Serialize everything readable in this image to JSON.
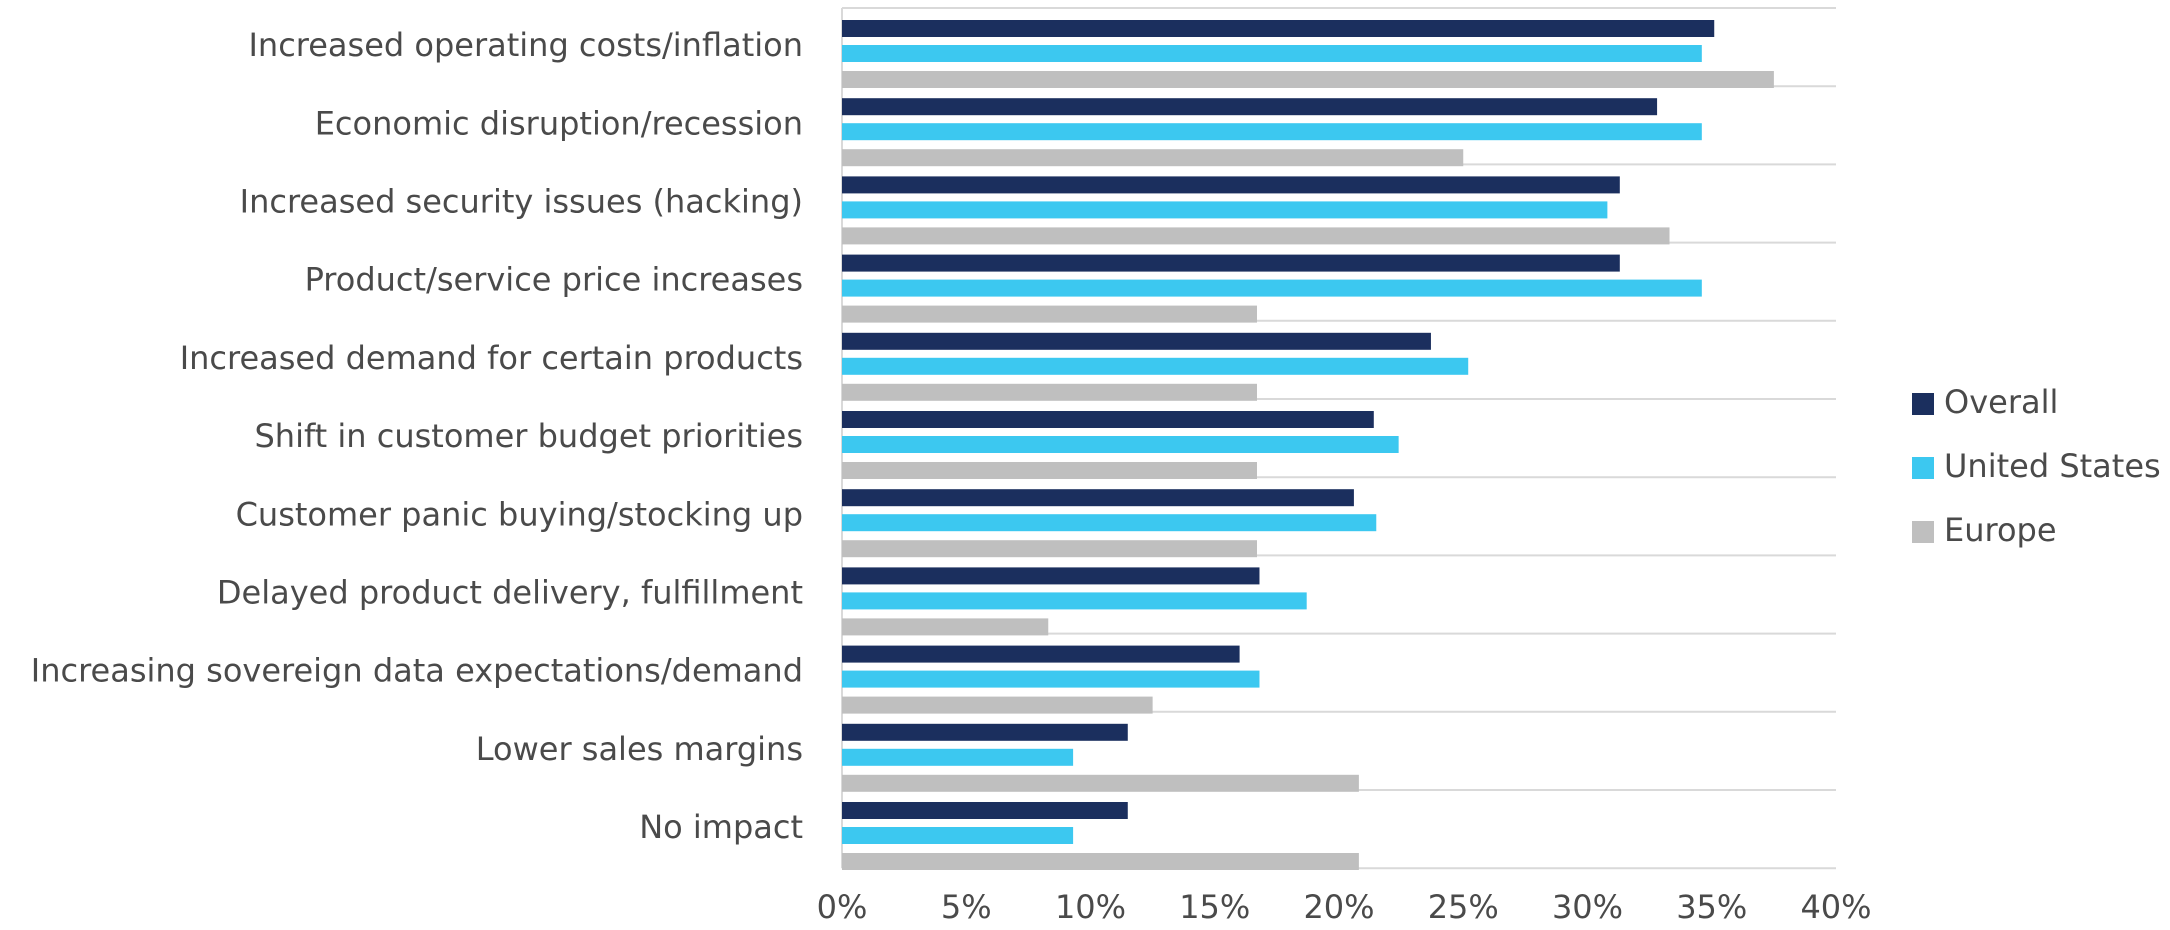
{
  "chart_data": {
    "type": "bar",
    "orientation": "horizontal",
    "categories": [
      "Increased operating costs/inflation",
      "Economic disruption/recession",
      "Increased security issues (hacking)",
      "Product/service price increases",
      "Increased demand for certain products",
      "Shift in customer budget priorities",
      "Customer panic buying/stocking up",
      "Delayed product delivery, fulfillment",
      "Increasing sovereign data expectations/demand",
      "Lower sales margins",
      "No impact"
    ],
    "series": [
      {
        "name": "Overall",
        "color": "#1b2f5e",
        "values": [
          35.1,
          32.8,
          31.3,
          31.3,
          23.7,
          21.4,
          20.6,
          16.8,
          16.0,
          11.5,
          11.5
        ]
      },
      {
        "name": "United States",
        "color": "#3cc8f0",
        "values": [
          34.6,
          34.6,
          30.8,
          34.6,
          25.2,
          22.4,
          21.5,
          18.7,
          16.8,
          9.3,
          9.3
        ]
      },
      {
        "name": "Europe",
        "color": "#bfbfbf",
        "values": [
          37.5,
          25.0,
          33.3,
          16.7,
          16.7,
          16.7,
          16.7,
          8.3,
          12.5,
          20.8,
          20.8
        ]
      }
    ],
    "xlim": [
      0,
      40
    ],
    "xticks": [
      0,
      5,
      10,
      15,
      20,
      25,
      30,
      35,
      40
    ],
    "tick_labels": [
      "0%",
      "5%",
      "10%",
      "15%",
      "20%",
      "25%",
      "30%",
      "35%",
      "40%"
    ],
    "grid": "horizontal separators between categories",
    "legend": "right"
  }
}
